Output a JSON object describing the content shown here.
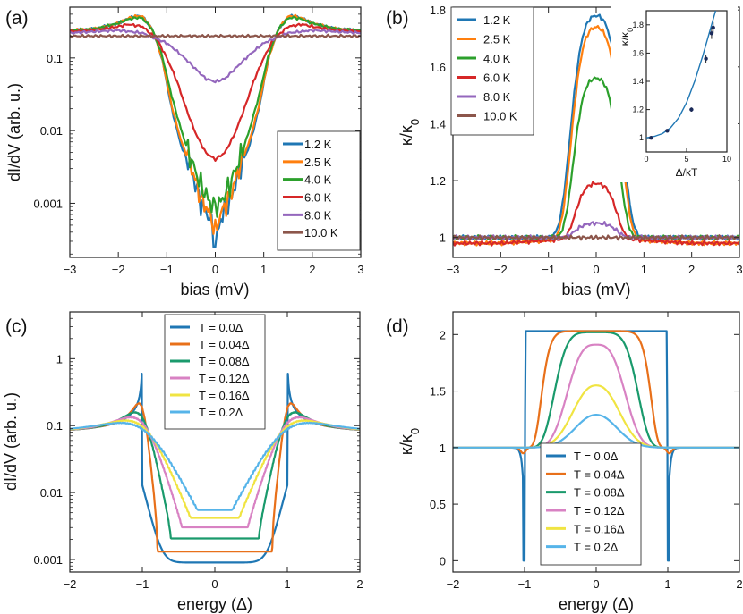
{
  "chart_data": [
    {
      "panel": "(a)",
      "type": "line",
      "yscale": "log",
      "xlabel": "bias (mV)",
      "ylabel": "dI/dV (arb. u.)",
      "xlim": [
        -3,
        3
      ],
      "ylim": [
        0.00018,
        0.5
      ],
      "xticks": [
        -3,
        -2,
        -1,
        0,
        1,
        2,
        3
      ],
      "yticks": [
        0.001,
        0.01,
        0.1
      ],
      "ytick_labels": [
        "0.001",
        "0.01",
        "0.1"
      ],
      "series": [
        {
          "name": "1.2 K",
          "color": "#1f77b4",
          "x": [
            -3,
            -2.5,
            -2,
            -1.8,
            -1.6,
            -1.5,
            -1.3,
            -1.1,
            -0.9,
            -0.7,
            -0.5,
            -0.3,
            -0.1,
            0,
            0.1,
            0.3,
            0.5,
            0.7,
            0.9,
            1.1,
            1.3,
            1.5,
            1.6,
            1.8,
            2,
            2.5,
            3
          ],
          "y": [
            0.24,
            0.25,
            0.3,
            0.35,
            0.38,
            0.37,
            0.25,
            0.1,
            0.02,
            0.006,
            0.003,
            0.001,
            0.0006,
            0.00025,
            0.0006,
            0.001,
            0.003,
            0.006,
            0.02,
            0.1,
            0.25,
            0.37,
            0.38,
            0.35,
            0.3,
            0.25,
            0.24
          ]
        },
        {
          "name": "2.5 K",
          "color": "#ff7f0e",
          "x": [
            -3,
            -2.5,
            -2,
            -1.8,
            -1.6,
            -1.5,
            -1.3,
            -1.1,
            -0.9,
            -0.7,
            -0.5,
            -0.3,
            -0.1,
            0,
            0.1,
            0.3,
            0.5,
            0.7,
            0.9,
            1.1,
            1.3,
            1.5,
            1.6,
            1.8,
            2,
            2.5,
            3
          ],
          "y": [
            0.24,
            0.25,
            0.3,
            0.35,
            0.38,
            0.37,
            0.25,
            0.1,
            0.022,
            0.007,
            0.0032,
            0.0012,
            0.0007,
            0.0004,
            0.0007,
            0.0012,
            0.0032,
            0.007,
            0.022,
            0.1,
            0.25,
            0.37,
            0.38,
            0.35,
            0.3,
            0.25,
            0.24
          ]
        },
        {
          "name": "4.0 K",
          "color": "#2ca02c",
          "x": [
            -3,
            -2.5,
            -2,
            -1.8,
            -1.6,
            -1.5,
            -1.3,
            -1.1,
            -0.9,
            -0.7,
            -0.5,
            -0.3,
            -0.1,
            0,
            0.1,
            0.3,
            0.5,
            0.7,
            0.9,
            1.1,
            1.3,
            1.5,
            1.6,
            1.8,
            2,
            2.5,
            3
          ],
          "y": [
            0.24,
            0.25,
            0.3,
            0.34,
            0.36,
            0.35,
            0.25,
            0.11,
            0.03,
            0.01,
            0.004,
            0.0018,
            0.001,
            0.0009,
            0.001,
            0.0018,
            0.004,
            0.01,
            0.03,
            0.11,
            0.25,
            0.35,
            0.36,
            0.34,
            0.3,
            0.25,
            0.24
          ]
        },
        {
          "name": "6.0 K",
          "color": "#d62728",
          "x": [
            -3,
            -2.5,
            -2,
            -1.8,
            -1.5,
            -1.2,
            -1,
            -0.8,
            -0.6,
            -0.4,
            -0.2,
            0,
            0.2,
            0.4,
            0.6,
            0.8,
            1,
            1.2,
            1.5,
            1.8,
            2,
            2.5,
            3
          ],
          "y": [
            0.23,
            0.24,
            0.27,
            0.29,
            0.27,
            0.18,
            0.1,
            0.05,
            0.02,
            0.009,
            0.005,
            0.004,
            0.005,
            0.009,
            0.02,
            0.05,
            0.1,
            0.18,
            0.27,
            0.29,
            0.27,
            0.24,
            0.23
          ]
        },
        {
          "name": "8.0 K",
          "color": "#9467bd",
          "x": [
            -3,
            -2.5,
            -2,
            -1.5,
            -1,
            -0.7,
            -0.4,
            -0.2,
            0,
            0.2,
            0.4,
            0.7,
            1,
            1.5,
            2,
            2.5,
            3
          ],
          "y": [
            0.22,
            0.23,
            0.24,
            0.22,
            0.16,
            0.11,
            0.07,
            0.052,
            0.047,
            0.052,
            0.07,
            0.11,
            0.16,
            0.22,
            0.24,
            0.23,
            0.22
          ]
        },
        {
          "name": "10.0 K",
          "color": "#8c564b",
          "x": [
            -3,
            3
          ],
          "y": [
            0.2,
            0.2
          ]
        }
      ],
      "legend": [
        "1.2 K",
        "2.5 K",
        "4.0 K",
        "6.0 K",
        "8.0 K",
        "10.0 K"
      ]
    },
    {
      "panel": "(b)",
      "type": "line",
      "xlabel": "bias (mV)",
      "ylabel": "κ/κ0",
      "xlim": [
        -3,
        3
      ],
      "ylim": [
        0.93,
        1.81
      ],
      "xticks": [
        -3,
        -2,
        -1,
        0,
        1,
        2,
        3
      ],
      "yticks": [
        1,
        1.2,
        1.4,
        1.6,
        1.8
      ],
      "series": [
        {
          "name": "1.2 K",
          "color": "#1f77b4",
          "peak": 1.78,
          "width": 0.62
        },
        {
          "name": "2.5 K",
          "color": "#ff7f0e",
          "peak": 1.74,
          "width": 0.6
        },
        {
          "name": "4.0 K",
          "color": "#2ca02c",
          "peak": 1.56,
          "width": 0.55
        },
        {
          "name": "6.0 K",
          "color": "#d62728",
          "peak": 1.19,
          "width": 0.5
        },
        {
          "name": "8.0 K",
          "color": "#9467bd",
          "peak": 1.05,
          "width": 0.5
        },
        {
          "name": "10.0 K",
          "color": "#8c564b",
          "peak": 1.0,
          "width": 0.5
        }
      ],
      "legend": [
        "1.2 K",
        "2.5 K",
        "4.0 K",
        "6.0 K",
        "8.0 K",
        "10.0 K"
      ],
      "inset": {
        "type": "scatter",
        "xlabel": "Δ/kT",
        "ylabel": "κ/κ0",
        "xlim": [
          0,
          10
        ],
        "ylim": [
          0.9,
          1.9
        ],
        "xticks": [
          0,
          5,
          10
        ],
        "yticks": [
          1,
          1.2,
          1.4,
          1.6,
          1.8
        ],
        "points": {
          "x": [
            0.6,
            2.6,
            5.6,
            7.4,
            8.1,
            8.3
          ],
          "y": [
            1.0,
            1.05,
            1.2,
            1.56,
            1.74,
            1.78
          ],
          "yerr": [
            0.01,
            0.01,
            0.015,
            0.03,
            0.04,
            0.04
          ]
        },
        "fit": {
          "x": [
            0,
            1,
            2,
            3,
            4,
            5,
            6,
            7,
            8,
            8.6
          ],
          "y": [
            1.0,
            1.01,
            1.03,
            1.07,
            1.14,
            1.25,
            1.4,
            1.58,
            1.78,
            1.9
          ]
        }
      }
    },
    {
      "panel": "(c)",
      "type": "line",
      "yscale": "log",
      "xlabel": "energy (Δ)",
      "ylabel": "dI/dV (arb. u.)",
      "xlim": [
        -2,
        2
      ],
      "ylim": [
        0.00065,
        5
      ],
      "xticks": [
        -2,
        -1,
        0,
        1,
        2
      ],
      "yticks": [
        0.001,
        0.01,
        0.1,
        1
      ],
      "ytick_labels": [
        "0.001",
        "0.01",
        "0.1",
        "1"
      ],
      "series": [
        {
          "name": "T = 0.0Δ",
          "color": "#1f77b4",
          "T": 0.0
        },
        {
          "name": "T = 0.04Δ",
          "color": "#e8701a",
          "T": 0.04
        },
        {
          "name": "T = 0.08Δ",
          "color": "#1a9a6c",
          "T": 0.08
        },
        {
          "name": "T = 0.12Δ",
          "color": "#d882c3",
          "T": 0.12
        },
        {
          "name": "T = 0.16Δ",
          "color": "#f0e442",
          "T": 0.16
        },
        {
          "name": "T = 0.2Δ",
          "color": "#56b4e9",
          "T": 0.2
        }
      ],
      "legend": [
        "T = 0.0Δ",
        "T = 0.04Δ",
        "T = 0.08Δ",
        "T = 0.12Δ",
        "T = 0.16Δ",
        "T = 0.2Δ"
      ]
    },
    {
      "panel": "(d)",
      "type": "line",
      "xlabel": "energy (Δ)",
      "ylabel": "κ/κ0",
      "xlim": [
        -2,
        2
      ],
      "ylim": [
        -0.1,
        2.2
      ],
      "xticks": [
        -2,
        -1,
        0,
        1,
        2
      ],
      "yticks": [
        0,
        0.5,
        1,
        1.5,
        2
      ],
      "ytick_labels": [
        "0",
        "0.5",
        "1",
        "1.5",
        "2"
      ],
      "series": [
        {
          "name": "T = 0.0Δ",
          "color": "#1f77b4",
          "peak": 2.03
        },
        {
          "name": "T = 0.04Δ",
          "color": "#e8701a",
          "peak": 2.03
        },
        {
          "name": "T = 0.08Δ",
          "color": "#1a9a6c",
          "peak": 2.02
        },
        {
          "name": "T = 0.12Δ",
          "color": "#d882c3",
          "peak": 1.91
        },
        {
          "name": "T = 0.16Δ",
          "color": "#f0e442",
          "peak": 1.55
        },
        {
          "name": "T = 0.2Δ",
          "color": "#56b4e9",
          "peak": 1.29
        }
      ],
      "legend": [
        "T = 0.0Δ",
        "T = 0.04Δ",
        "T = 0.08Δ",
        "T = 0.12Δ",
        "T = 0.16Δ",
        "T = 0.2Δ"
      ]
    }
  ]
}
